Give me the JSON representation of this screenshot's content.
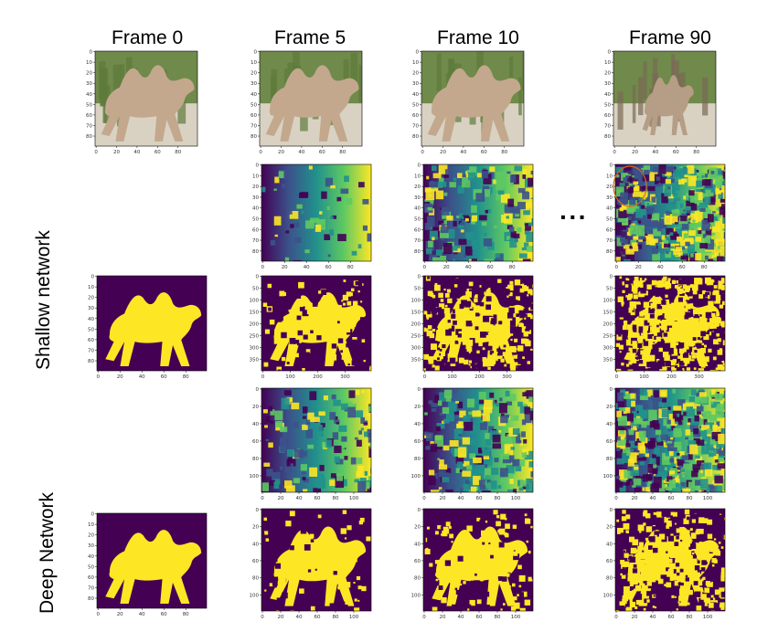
{
  "columns": [
    {
      "title": "Frame 0"
    },
    {
      "title": "Frame 5"
    },
    {
      "title": "Frame 10"
    },
    {
      "title": "Frame 90"
    }
  ],
  "ellipsis": "···",
  "row_labels": {
    "shallow": "Shallow network",
    "deep": "Deep Network"
  },
  "axes": {
    "small_y": [
      "0",
      "10",
      "20",
      "30",
      "40",
      "50",
      "60",
      "70",
      "80"
    ],
    "small_x": [
      "0",
      "20",
      "40",
      "60",
      "80"
    ],
    "mid_y": [
      "0",
      "50",
      "100",
      "150",
      "200",
      "250",
      "300",
      "350"
    ],
    "mid_x": [
      "0",
      "100",
      "200",
      "300"
    ],
    "large_y": [
      "0",
      "20",
      "40",
      "60",
      "80",
      "100"
    ],
    "large_x": [
      "0",
      "20",
      "40",
      "60",
      "80",
      "100"
    ]
  },
  "colors": {
    "viridis_dark": "#440154",
    "viridis_blue": "#3b528b",
    "viridis_teal": "#21918c",
    "viridis_green": "#5ec962",
    "viridis_yellow": "#fde725",
    "highlight_circle": "#d2691e"
  }
}
